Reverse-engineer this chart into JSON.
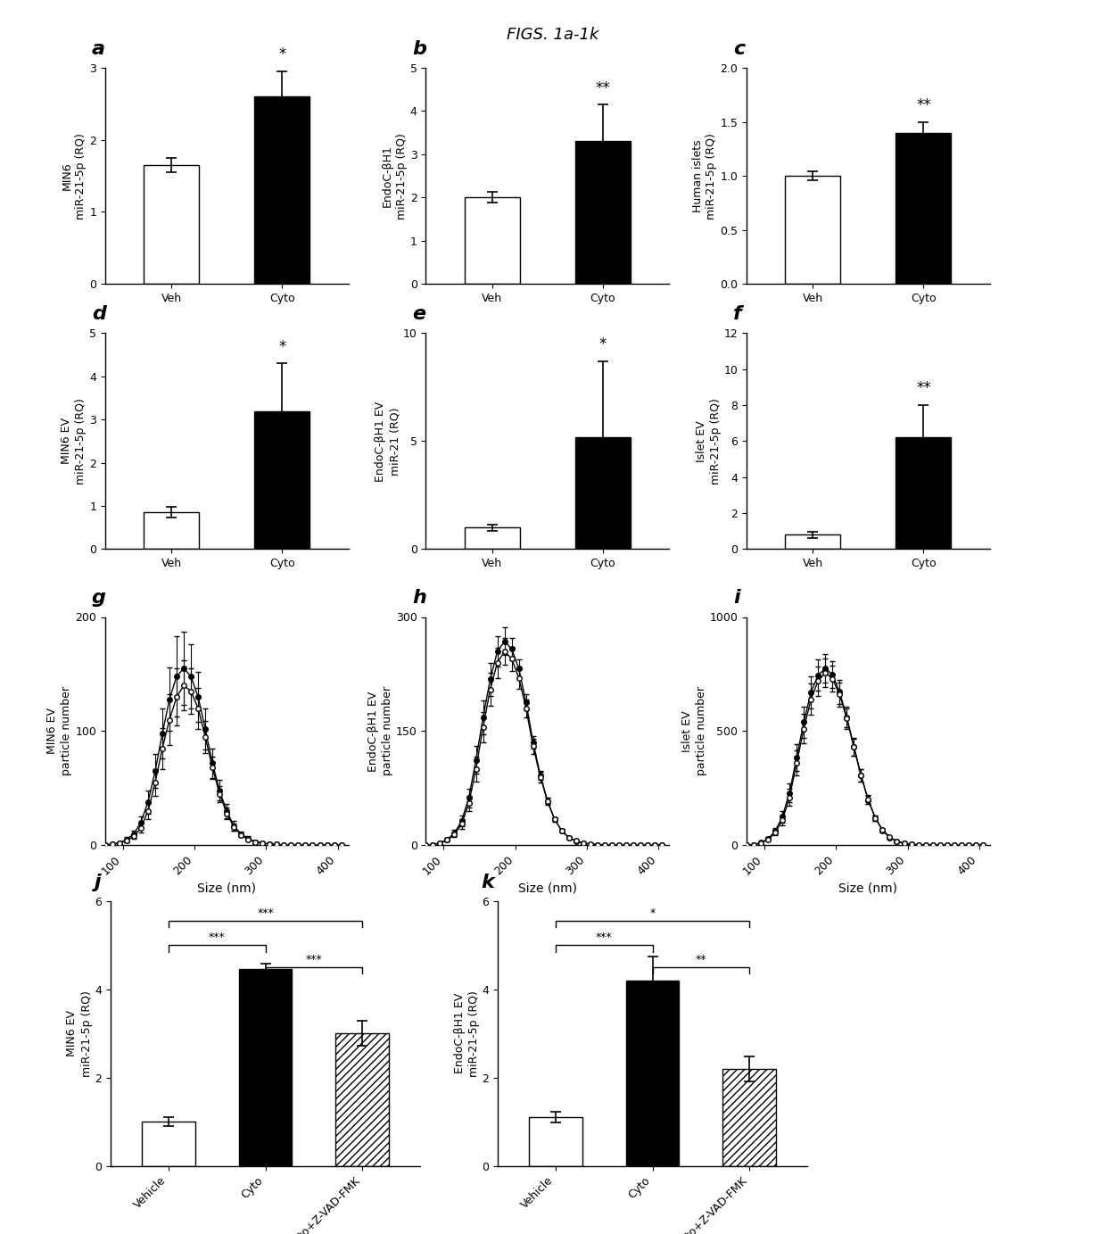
{
  "title": "FIGS. 1a-1k",
  "bar_panels": {
    "a": {
      "ylabel": "MIN6\nmiR-21-5p (RQ)",
      "ylim": [
        0,
        3
      ],
      "yticks": [
        0,
        1,
        2,
        3
      ],
      "categories": [
        "Veh",
        "Cyto"
      ],
      "values": [
        1.65,
        2.6
      ],
      "errors": [
        0.1,
        0.35
      ],
      "colors": [
        "white",
        "black"
      ],
      "sig": "*",
      "sig_on": 1
    },
    "b": {
      "ylabel": "EndoC-βH1\nmiR-21-5p (RQ)",
      "ylim": [
        0,
        5
      ],
      "yticks": [
        0,
        1,
        2,
        3,
        4,
        5
      ],
      "categories": [
        "Veh",
        "Cyto"
      ],
      "values": [
        2.0,
        3.3
      ],
      "errors": [
        0.12,
        0.85
      ],
      "colors": [
        "white",
        "black"
      ],
      "sig": "**",
      "sig_on": 1
    },
    "c": {
      "ylabel": "Human islets\nmiR-21-5p (RQ)",
      "ylim": [
        0,
        2
      ],
      "yticks": [
        0,
        0.5,
        1.0,
        1.5,
        2.0
      ],
      "categories": [
        "Veh",
        "Cyto"
      ],
      "values": [
        1.0,
        1.4
      ],
      "errors": [
        0.04,
        0.1
      ],
      "colors": [
        "white",
        "black"
      ],
      "sig": "**",
      "sig_on": 1
    },
    "d": {
      "ylabel": "MIN6 EV\nmiR-21-5p (RQ)",
      "ylim": [
        0,
        5
      ],
      "yticks": [
        0,
        1,
        2,
        3,
        4,
        5
      ],
      "categories": [
        "Veh",
        "Cyto"
      ],
      "values": [
        0.85,
        3.2
      ],
      "errors": [
        0.12,
        1.1
      ],
      "colors": [
        "white",
        "black"
      ],
      "sig": "*",
      "sig_on": 1
    },
    "e": {
      "ylabel": "EndoC-βH1 EV\nmiR-21 (RQ)",
      "ylim": [
        0,
        10
      ],
      "yticks": [
        0,
        5,
        10
      ],
      "categories": [
        "Veh",
        "Cyto"
      ],
      "values": [
        1.0,
        5.2
      ],
      "errors": [
        0.15,
        3.5
      ],
      "colors": [
        "white",
        "black"
      ],
      "sig": "*",
      "sig_on": 1
    },
    "f": {
      "ylabel": "Islet EV\nmiR-21-5p (RQ)",
      "ylim": [
        0,
        12
      ],
      "yticks": [
        0,
        2,
        4,
        6,
        8,
        10,
        12
      ],
      "categories": [
        "Veh",
        "Cyto"
      ],
      "values": [
        0.8,
        6.2
      ],
      "errors": [
        0.18,
        1.8
      ],
      "colors": [
        "white",
        "black"
      ],
      "sig": "**",
      "sig_on": 1
    }
  },
  "line_panels": {
    "g": {
      "ylabel": "MIN6 EV\nparticle number",
      "xlabel": "Size (nm)",
      "ylim": [
        0,
        200
      ],
      "yticks": [
        0,
        100,
        200
      ],
      "xlim": [
        75,
        415
      ],
      "xticks": [
        100,
        200,
        300,
        400
      ],
      "veh_x": [
        75,
        85,
        95,
        105,
        115,
        125,
        135,
        145,
        155,
        165,
        175,
        185,
        195,
        205,
        215,
        225,
        235,
        245,
        255,
        265,
        275,
        285,
        295,
        305,
        315,
        325,
        335,
        345,
        355,
        365,
        375,
        385,
        395,
        405
      ],
      "veh_y": [
        0,
        1,
        2,
        4,
        8,
        15,
        30,
        55,
        85,
        110,
        130,
        140,
        135,
        120,
        95,
        68,
        45,
        28,
        16,
        9,
        5,
        3,
        2,
        1,
        1,
        0,
        0,
        0,
        0,
        0,
        0,
        0,
        0,
        0
      ],
      "veh_err": [
        0,
        0,
        1,
        1,
        2,
        4,
        7,
        12,
        18,
        22,
        25,
        22,
        20,
        18,
        14,
        10,
        7,
        5,
        3,
        2,
        1,
        1,
        0,
        0,
        0,
        0,
        0,
        0,
        0,
        0,
        0,
        0,
        0,
        0
      ],
      "cyto_x": [
        75,
        85,
        95,
        105,
        115,
        125,
        135,
        145,
        155,
        165,
        175,
        185,
        195,
        205,
        215,
        225,
        235,
        245,
        255,
        265,
        275,
        285,
        295,
        305,
        315,
        325,
        335,
        345,
        355,
        365,
        375,
        385,
        395,
        405
      ],
      "cyto_y": [
        0,
        1,
        2,
        5,
        10,
        20,
        38,
        65,
        98,
        128,
        148,
        155,
        148,
        130,
        102,
        72,
        48,
        30,
        17,
        10,
        6,
        3,
        2,
        1,
        1,
        0,
        0,
        0,
        0,
        0,
        0,
        0,
        0,
        0
      ],
      "cyto_err": [
        0,
        0,
        1,
        2,
        3,
        5,
        10,
        15,
        22,
        28,
        35,
        32,
        28,
        22,
        18,
        13,
        9,
        6,
        4,
        2,
        2,
        1,
        1,
        0,
        0,
        0,
        0,
        0,
        0,
        0,
        0,
        0,
        0,
        0
      ]
    },
    "h": {
      "ylabel": "EndoC-βH1 EV\nparticle number",
      "xlabel": "Size (nm)",
      "ylim": [
        0,
        300
      ],
      "yticks": [
        0,
        150,
        300
      ],
      "xlim": [
        75,
        415
      ],
      "xticks": [
        100,
        200,
        300,
        400
      ],
      "veh_x": [
        75,
        85,
        95,
        105,
        115,
        125,
        135,
        145,
        155,
        165,
        175,
        185,
        195,
        205,
        215,
        225,
        235,
        245,
        255,
        265,
        275,
        285,
        295,
        305,
        315,
        325,
        335,
        345,
        355,
        365,
        375,
        385,
        395,
        405
      ],
      "veh_y": [
        0,
        1,
        3,
        7,
        14,
        28,
        55,
        100,
        155,
        205,
        240,
        255,
        245,
        220,
        180,
        130,
        90,
        58,
        34,
        19,
        10,
        6,
        3,
        2,
        1,
        0,
        0,
        0,
        0,
        0,
        0,
        0,
        0,
        0
      ],
      "veh_err": [
        0,
        0,
        1,
        2,
        3,
        6,
        10,
        16,
        20,
        22,
        20,
        18,
        16,
        14,
        12,
        10,
        7,
        5,
        3,
        2,
        1,
        1,
        0,
        0,
        0,
        0,
        0,
        0,
        0,
        0,
        0,
        0,
        0,
        0
      ],
      "cyto_x": [
        75,
        85,
        95,
        105,
        115,
        125,
        135,
        145,
        155,
        165,
        175,
        185,
        195,
        205,
        215,
        225,
        235,
        245,
        255,
        265,
        275,
        285,
        295,
        305,
        315,
        325,
        335,
        345,
        355,
        365,
        375,
        385,
        395,
        405
      ],
      "cyto_y": [
        0,
        1,
        3,
        8,
        16,
        32,
        62,
        112,
        168,
        218,
        255,
        268,
        258,
        232,
        188,
        135,
        92,
        58,
        34,
        19,
        10,
        5,
        3,
        1,
        1,
        0,
        0,
        0,
        0,
        0,
        0,
        0,
        0,
        0
      ],
      "cyto_err": [
        0,
        0,
        1,
        2,
        4,
        7,
        12,
        18,
        22,
        22,
        20,
        18,
        15,
        12,
        10,
        8,
        6,
        4,
        2,
        1,
        1,
        0,
        0,
        0,
        0,
        0,
        0,
        0,
        0,
        0,
        0,
        0,
        0,
        0
      ]
    },
    "i": {
      "ylabel": "Islet EV\nparticle number",
      "xlabel": "Size (nm)",
      "ylim": [
        0,
        1000
      ],
      "yticks": [
        0,
        500,
        1000
      ],
      "xlim": [
        75,
        415
      ],
      "xticks": [
        100,
        200,
        300,
        400
      ],
      "veh_x": [
        75,
        85,
        95,
        105,
        115,
        125,
        135,
        145,
        155,
        165,
        175,
        185,
        195,
        205,
        215,
        225,
        235,
        245,
        255,
        265,
        275,
        285,
        295,
        305,
        315,
        325,
        335,
        345,
        355,
        365,
        375,
        385,
        395,
        405
      ],
      "veh_y": [
        0,
        3,
        10,
        25,
        55,
        110,
        210,
        360,
        510,
        640,
        720,
        755,
        730,
        660,
        555,
        430,
        305,
        200,
        120,
        68,
        36,
        18,
        9,
        5,
        2,
        1,
        1,
        0,
        0,
        0,
        0,
        0,
        0,
        0
      ],
      "veh_err": [
        0,
        1,
        3,
        6,
        12,
        22,
        38,
        55,
        65,
        68,
        65,
        62,
        58,
        52,
        45,
        38,
        28,
        20,
        12,
        7,
        4,
        2,
        1,
        1,
        0,
        0,
        0,
        0,
        0,
        0,
        0,
        0,
        0,
        0
      ],
      "cyto_x": [
        75,
        85,
        95,
        105,
        115,
        125,
        135,
        145,
        155,
        165,
        175,
        185,
        195,
        205,
        215,
        225,
        235,
        245,
        255,
        265,
        275,
        285,
        295,
        305,
        315,
        325,
        335,
        345,
        355,
        365,
        375,
        385,
        395,
        405
      ],
      "cyto_y": [
        0,
        3,
        12,
        28,
        62,
        125,
        230,
        385,
        540,
        670,
        745,
        775,
        748,
        672,
        562,
        432,
        305,
        198,
        118,
        65,
        34,
        16,
        8,
        4,
        2,
        1,
        0,
        0,
        0,
        0,
        0,
        0,
        0,
        0
      ],
      "cyto_err": [
        0,
        1,
        3,
        7,
        14,
        25,
        42,
        58,
        68,
        72,
        68,
        64,
        60,
        54,
        46,
        38,
        28,
        18,
        11,
        6,
        3,
        2,
        1,
        0,
        0,
        0,
        0,
        0,
        0,
        0,
        0,
        0,
        0,
        0
      ]
    }
  },
  "bar3_panels": {
    "j": {
      "ylabel": "MIN6 EV\nmiR-21-5p (RQ)",
      "ylim": [
        0,
        6
      ],
      "yticks": [
        0,
        2,
        4,
        6
      ],
      "categories": [
        "Vehicle",
        "Cyto",
        "Cyto+Z-VAD-FMK"
      ],
      "values": [
        1.0,
        4.45,
        3.0
      ],
      "errors": [
        0.1,
        0.12,
        0.28
      ],
      "colors": [
        "white",
        "black",
        "hatch"
      ],
      "sig_pairs": [
        {
          "pair": [
            0,
            2
          ],
          "label": "***",
          "height": 5.55
        },
        {
          "pair": [
            0,
            1
          ],
          "label": "***",
          "height": 5.0
        },
        {
          "pair": [
            1,
            2
          ],
          "label": "***",
          "height": 4.5
        }
      ]
    },
    "k": {
      "ylabel": "EndoC-βH1 EV\nmiR-21-5p (RQ)",
      "ylim": [
        0,
        6
      ],
      "yticks": [
        0,
        2,
        4,
        6
      ],
      "categories": [
        "Vehicle",
        "Cyto",
        "Cyto+Z-VAD-FMK"
      ],
      "values": [
        1.1,
        4.2,
        2.2
      ],
      "errors": [
        0.12,
        0.55,
        0.28
      ],
      "colors": [
        "white",
        "black",
        "hatch"
      ],
      "sig_pairs": [
        {
          "pair": [
            0,
            2
          ],
          "label": "*",
          "height": 5.55
        },
        {
          "pair": [
            0,
            1
          ],
          "label": "***",
          "height": 5.0
        },
        {
          "pair": [
            1,
            2
          ],
          "label": "**",
          "height": 4.5
        }
      ]
    }
  },
  "background_color": "#ffffff",
  "bar_edgecolor": "black",
  "bar_width": 0.5
}
